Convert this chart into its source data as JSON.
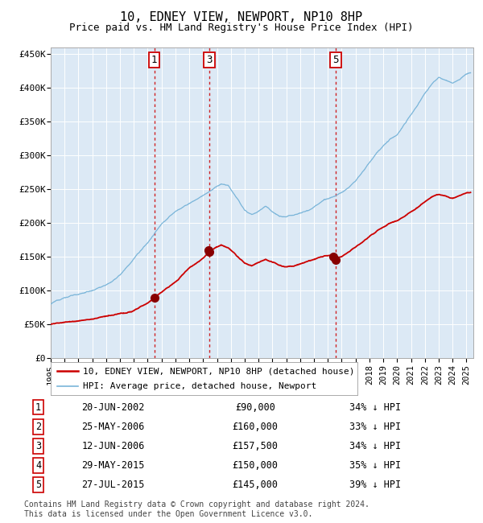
{
  "title": "10, EDNEY VIEW, NEWPORT, NP10 8HP",
  "subtitle": "Price paid vs. HM Land Registry's House Price Index (HPI)",
  "title_fontsize": 11,
  "subtitle_fontsize": 9,
  "background_color": "#ffffff",
  "plot_bg_color": "#dce9f5",
  "grid_color": "#ffffff",
  "hpi_line_color": "#7ab5d9",
  "price_line_color": "#cc0000",
  "marker_color": "#880000",
  "dashed_line_color": "#cc0000",
  "yticks": [
    0,
    50000,
    100000,
    150000,
    200000,
    250000,
    300000,
    350000,
    400000,
    450000
  ],
  "ytick_labels": [
    "£0",
    "£50K",
    "£100K",
    "£150K",
    "£200K",
    "£250K",
    "£300K",
    "£350K",
    "£400K",
    "£450K"
  ],
  "xmin": 1995.0,
  "xmax": 2025.5,
  "ymin": 0,
  "ymax": 460000,
  "xtick_years": [
    1995,
    1996,
    1997,
    1998,
    1999,
    2000,
    2001,
    2002,
    2003,
    2004,
    2005,
    2006,
    2007,
    2008,
    2009,
    2010,
    2011,
    2012,
    2013,
    2014,
    2015,
    2016,
    2017,
    2018,
    2019,
    2020,
    2021,
    2022,
    2023,
    2024,
    2025
  ],
  "transactions": [
    {
      "id": 1,
      "date": "20-JUN-2002",
      "year": 2002.47,
      "price": 90000,
      "show_vline": true
    },
    {
      "id": 2,
      "date": "25-MAY-2006",
      "year": 2006.4,
      "price": 160000,
      "show_vline": false
    },
    {
      "id": 3,
      "date": "12-JUN-2006",
      "year": 2006.45,
      "price": 157500,
      "show_vline": true
    },
    {
      "id": 4,
      "date": "29-MAY-2015",
      "year": 2015.41,
      "price": 150000,
      "show_vline": false
    },
    {
      "id": 5,
      "date": "27-JUL-2015",
      "year": 2015.57,
      "price": 145000,
      "show_vline": true
    }
  ],
  "legend_entries": [
    {
      "label": "10, EDNEY VIEW, NEWPORT, NP10 8HP (detached house)",
      "color": "#cc0000",
      "lw": 1.8
    },
    {
      "label": "HPI: Average price, detached house, Newport",
      "color": "#7ab5d9",
      "lw": 1.2
    }
  ],
  "footer_text": "Contains HM Land Registry data © Crown copyright and database right 2024.\nThis data is licensed under the Open Government Licence v3.0.",
  "table_rows": [
    {
      "id": 1,
      "date": "20-JUN-2002",
      "price": "£90,000",
      "pct": "34% ↓ HPI"
    },
    {
      "id": 2,
      "date": "25-MAY-2006",
      "price": "£160,000",
      "pct": "33% ↓ HPI"
    },
    {
      "id": 3,
      "date": "12-JUN-2006",
      "price": "£157,500",
      "pct": "34% ↓ HPI"
    },
    {
      "id": 4,
      "date": "29-MAY-2015",
      "price": "£150,000",
      "pct": "35% ↓ HPI"
    },
    {
      "id": 5,
      "date": "27-JUL-2015",
      "price": "£145,000",
      "pct": "39% ↓ HPI"
    }
  ]
}
